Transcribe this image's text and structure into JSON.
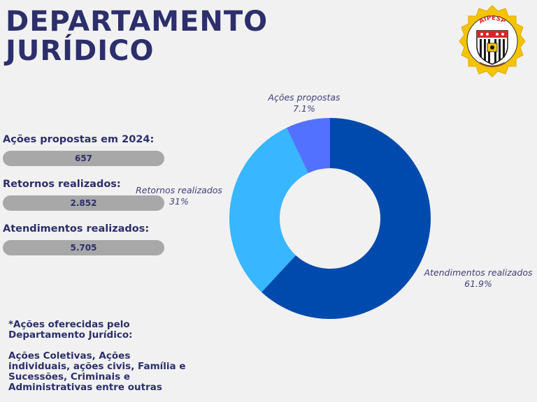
{
  "header": {
    "title_line1": "DEPARTAMENTO",
    "title_line2": "JURÍDICO"
  },
  "logo": {
    "text": "AIPESP"
  },
  "stats": [
    {
      "label": "Ações propostas em 2024:",
      "value": "657"
    },
    {
      "label": "Retornos realizados:",
      "value": "2.852"
    },
    {
      "label": "Atendimentos realizados:",
      "value": "5.705"
    }
  ],
  "note": {
    "title": "*Ações oferecidas pelo Departamento Jurídico:",
    "body": "Ações Coletivas, Ações individuais, ações civis, Família e Sucessões, Criminais e Administrativas entre outras"
  },
  "colors": {
    "title": "#2c2f6b",
    "background": "#f1f1f1",
    "pill": "#a8a8a8"
  },
  "chart_data": {
    "type": "pie",
    "donut": true,
    "title": "",
    "slices": [
      {
        "name": "Atendimentos realizados",
        "value": 61.9,
        "label": "61.9%",
        "color": "#004aad"
      },
      {
        "name": "Retornos realizados",
        "value": 31,
        "label": "31%",
        "color": "#38b6ff"
      },
      {
        "name": "Ações propostas",
        "value": 7.1,
        "label": "7.1%",
        "color": "#5271ff"
      }
    ]
  }
}
